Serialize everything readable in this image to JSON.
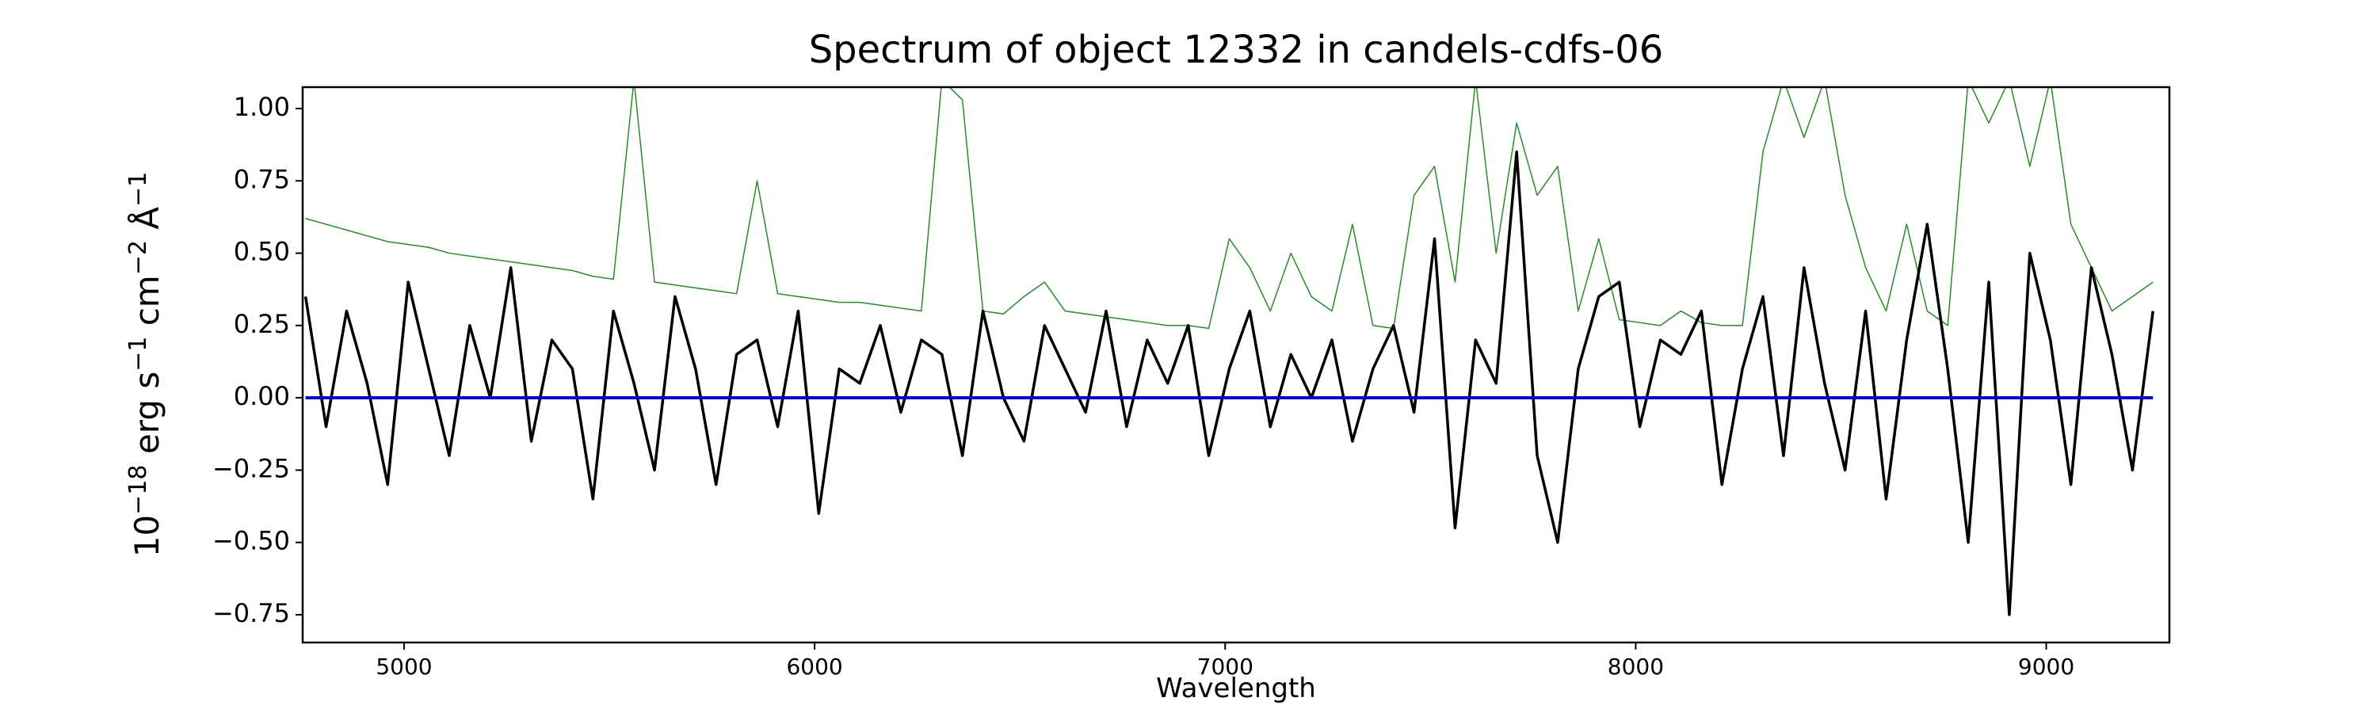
{
  "chart_data": {
    "type": "line",
    "title": "Spectrum of object 12332 in candels-cdfs-06",
    "x_label": "Wavelength",
    "y_label": [
      {
        "text": "10",
        "sup": "−18"
      },
      {
        "text": " erg s",
        "sup": "−1"
      },
      {
        "text": " cm",
        "sup": "−2"
      },
      {
        "text": " Å",
        "sup": "−1"
      }
    ],
    "x": [
      4760,
      4810,
      4860,
      4910,
      4960,
      5010,
      5060,
      5110,
      5160,
      5210,
      5260,
      5310,
      5360,
      5410,
      5460,
      5510,
      5560,
      5610,
      5660,
      5710,
      5760,
      5810,
      5860,
      5910,
      5960,
      6010,
      6060,
      6110,
      6160,
      6210,
      6260,
      6310,
      6360,
      6410,
      6460,
      6510,
      6560,
      6610,
      6660,
      6710,
      6760,
      6810,
      6860,
      6910,
      6960,
      7010,
      7060,
      7110,
      7160,
      7210,
      7260,
      7310,
      7360,
      7410,
      7460,
      7510,
      7560,
      7610,
      7660,
      7710,
      7760,
      7810,
      7860,
      7910,
      7960,
      8010,
      8060,
      8110,
      8160,
      8210,
      8260,
      8310,
      8360,
      8410,
      8460,
      8510,
      8560,
      8610,
      8660,
      8710,
      8760,
      8810,
      8860,
      8910,
      8960,
      9010,
      9060,
      9110,
      9160,
      9210,
      9260
    ],
    "series": [
      {
        "color": "#2a8a2a",
        "width": 1.5,
        "values": [
          0.62,
          0.6,
          0.58,
          0.56,
          0.54,
          0.53,
          0.52,
          0.5,
          0.49,
          0.48,
          0.47,
          0.46,
          0.45,
          0.44,
          0.42,
          0.41,
          1.1,
          0.4,
          0.39,
          0.38,
          0.37,
          0.36,
          0.75,
          0.36,
          0.35,
          0.34,
          0.33,
          0.33,
          0.32,
          0.31,
          0.3,
          1.1,
          1.03,
          0.3,
          0.29,
          0.35,
          0.4,
          0.3,
          0.29,
          0.28,
          0.27,
          0.26,
          0.25,
          0.25,
          0.24,
          0.55,
          0.45,
          0.3,
          0.5,
          0.35,
          0.3,
          0.6,
          0.25,
          0.24,
          0.7,
          0.8,
          0.4,
          1.1,
          0.5,
          0.95,
          0.7,
          0.8,
          0.3,
          0.55,
          0.27,
          0.26,
          0.25,
          0.3,
          0.26,
          0.25,
          0.25,
          0.85,
          1.1,
          0.9,
          1.1,
          0.7,
          0.45,
          0.3,
          0.6,
          0.3,
          0.25,
          1.1,
          0.95,
          1.1,
          0.8,
          1.1,
          0.6,
          0.45,
          0.3,
          0.35,
          0.4
        ]
      },
      {
        "color": "#000000",
        "width": 3.5,
        "values": [
          0.35,
          -0.1,
          0.3,
          0.05,
          -0.3,
          0.4,
          0.1,
          -0.2,
          0.25,
          0.0,
          0.45,
          -0.15,
          0.2,
          0.1,
          -0.35,
          0.3,
          0.05,
          -0.25,
          0.35,
          0.1,
          -0.3,
          0.15,
          0.2,
          -0.1,
          0.3,
          -0.4,
          0.1,
          0.05,
          0.25,
          -0.05,
          0.2,
          0.15,
          -0.2,
          0.3,
          0.0,
          -0.15,
          0.25,
          0.1,
          -0.05,
          0.3,
          -0.1,
          0.2,
          0.05,
          0.25,
          -0.2,
          0.1,
          0.3,
          -0.1,
          0.15,
          0.0,
          0.2,
          -0.15,
          0.1,
          0.25,
          -0.05,
          0.55,
          -0.45,
          0.2,
          0.05,
          0.85,
          -0.2,
          -0.5,
          0.1,
          0.35,
          0.4,
          -0.1,
          0.2,
          0.15,
          0.3,
          -0.3,
          0.1,
          0.35,
          -0.2,
          0.45,
          0.05,
          -0.25,
          0.3,
          -0.35,
          0.2,
          0.6,
          0.1,
          -0.5,
          0.4,
          -0.75,
          0.5,
          0.2,
          -0.3,
          0.45,
          0.15,
          -0.25,
          0.3
        ]
      },
      {
        "color": "#0000cc",
        "width": 4,
        "values": [
          0,
          0,
          0,
          0,
          0,
          0,
          0,
          0,
          0,
          0,
          0,
          0,
          0,
          0,
          0,
          0,
          0,
          0,
          0,
          0,
          0,
          0,
          0,
          0,
          0,
          0,
          0,
          0,
          0,
          0,
          0,
          0,
          0,
          0,
          0,
          0,
          0,
          0,
          0,
          0,
          0,
          0,
          0,
          0,
          0,
          0,
          0,
          0,
          0,
          0,
          0,
          0,
          0,
          0,
          0,
          0,
          0,
          0,
          0,
          0,
          0,
          0,
          0,
          0,
          0,
          0,
          0,
          0,
          0,
          0,
          0,
          0,
          0,
          0,
          0,
          0,
          0,
          0,
          0,
          0,
          0,
          0,
          0,
          0,
          0,
          0,
          0,
          0,
          0,
          0,
          0
        ]
      }
    ],
    "xlim": [
      4753,
      9300
    ],
    "ylim": [
      -0.846,
      1.074
    ],
    "xticks": [
      5000,
      6000,
      7000,
      8000,
      9000
    ],
    "yticks": [
      {
        "value": -0.75,
        "label": "−0.75"
      },
      {
        "value": -0.5,
        "label": "−0.50"
      },
      {
        "value": -0.25,
        "label": "−0.25"
      },
      {
        "value": 0,
        "label": "0.00"
      },
      {
        "value": 0.25,
        "label": "0.25"
      },
      {
        "value": 0.5,
        "label": "0.50"
      },
      {
        "value": 0.75,
        "label": "0.75"
      },
      {
        "value": 1,
        "label": "1.00"
      }
    ]
  }
}
